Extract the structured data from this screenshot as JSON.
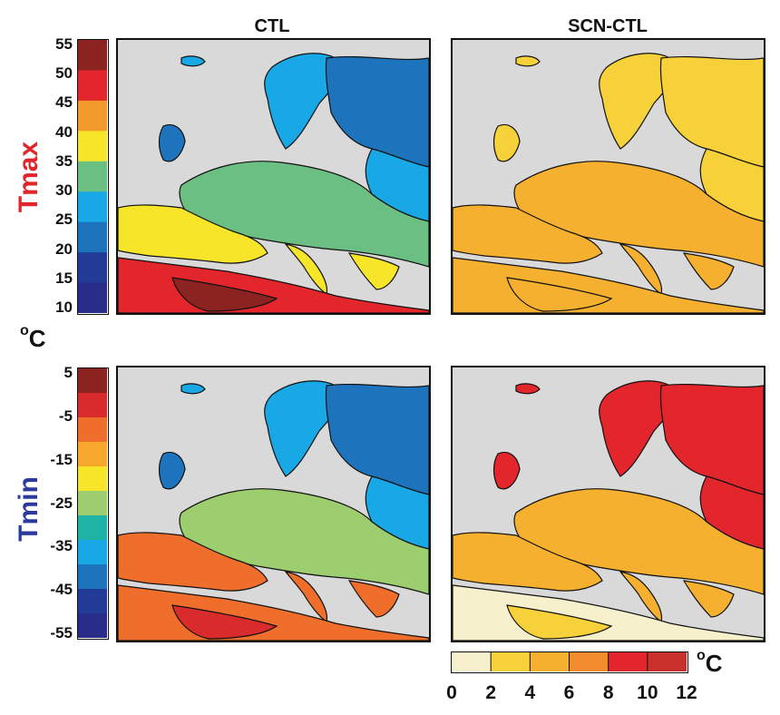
{
  "column_titles": [
    "CTL",
    "SCN-CTL"
  ],
  "row_labels": {
    "top": {
      "text": "Tmax",
      "color": "#e0262a"
    },
    "bottom": {
      "text": "Tmin",
      "color": "#2b3a9e"
    }
  },
  "unit_label": {
    "base": "o",
    "letter": "C"
  },
  "colorbar_bottom_unit": {
    "base": "o",
    "letter": "C"
  },
  "tmax_colorbar": {
    "ticks": [
      "55",
      "50",
      "45",
      "40",
      "35",
      "30",
      "25",
      "20",
      "15",
      "10"
    ],
    "colors": [
      "#8b2320",
      "#e2262c",
      "#f29b2c",
      "#f7e52a",
      "#6cbf82",
      "#19a8e6",
      "#1d74bc",
      "#223b96",
      "#2a2c8a"
    ]
  },
  "tmin_colorbar": {
    "ticks": [
      "5",
      "-5",
      "-15",
      "-25",
      "-35",
      "-45",
      "-55"
    ],
    "colors": [
      "#8b2320",
      "#d92b2b",
      "#ef6e2b",
      "#f6a72c",
      "#f7e52a",
      "#9ccd6e",
      "#1fb3a6",
      "#19a8e6",
      "#1d74bc",
      "#223b96",
      "#2a2c8a"
    ]
  },
  "diff_colorbar": {
    "ticks": [
      "0",
      "2",
      "4",
      "6",
      "8",
      "10",
      "12"
    ],
    "colors": [
      "#f6f1cc",
      "#f7d13a",
      "#f6b02f",
      "#f28a2e",
      "#e2262c",
      "#c9302c"
    ]
  },
  "maps": {
    "ctl_tmax": {
      "north": "#1d74bc",
      "scandinavia": "#19a8e6",
      "central": "#6cbf82",
      "south": "#f7e52a",
      "africa": "#e2262c",
      "africa_hot": "#8b2320"
    },
    "scn_tmax": {
      "north": "#f7d13a",
      "scandinavia": "#f7d13a",
      "central": "#f6b02f",
      "south": "#f6b02f",
      "africa": "#f6b02f",
      "africa_hot": "#f6b02f"
    },
    "ctl_tmin": {
      "north": "#1d74bc",
      "scandinavia": "#19a8e6",
      "central": "#9ccd6e",
      "south": "#ef6e2b",
      "africa": "#ef6e2b",
      "africa_hot": "#d92b2b"
    },
    "scn_tmin": {
      "north": "#e2262c",
      "scandinavia": "#e2262c",
      "central": "#f6b02f",
      "south": "#f6b02f",
      "africa": "#f6f1cc",
      "africa_hot": "#f7d13a"
    }
  }
}
